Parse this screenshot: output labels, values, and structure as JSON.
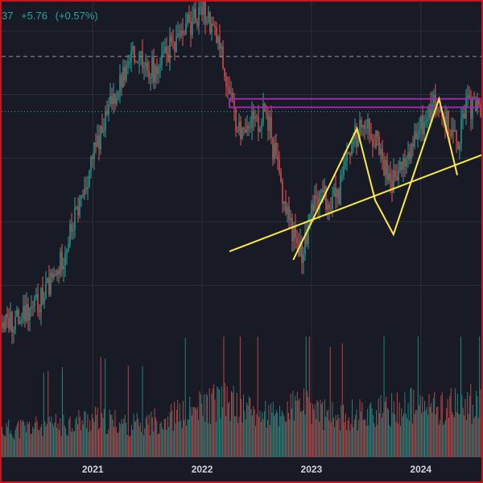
{
  "header": {
    "price_fragment": "37",
    "change": "+5.76",
    "change_pct": "(+0.57%)"
  },
  "colors": {
    "background": "#181b25",
    "up": "#26a69a",
    "down": "#ef5350",
    "trendline": "#ffeb3b",
    "resistance_zone": "#9c27b0",
    "grid": "#2a2e39",
    "border": "#c8141c"
  },
  "chart_data": {
    "type": "candlestick",
    "x_tick_labels": [
      "2021",
      "2022",
      "2023",
      "2024"
    ],
    "x_range": [
      "2020-03",
      "2024-08"
    ],
    "grid": true,
    "price_series": [
      [
        "2020-03",
        20
      ],
      [
        "2020-06",
        23
      ],
      [
        "2020-09",
        32
      ],
      [
        "2020-12",
        52
      ],
      [
        "2021-01",
        60
      ],
      [
        "2021-02",
        66
      ],
      [
        "2021-03",
        73
      ],
      [
        "2021-04",
        78
      ],
      [
        "2021-05",
        82
      ],
      [
        "2021-06",
        86
      ],
      [
        "2021-07",
        82
      ],
      [
        "2021-08",
        80
      ],
      [
        "2021-09",
        84
      ],
      [
        "2021-10",
        88
      ],
      [
        "2021-11",
        92
      ],
      [
        "2021-12",
        92
      ],
      [
        "2022-01",
        96
      ],
      [
        "2022-02",
        92
      ],
      [
        "2022-03",
        86
      ],
      [
        "2022-04",
        74
      ],
      [
        "2022-05",
        66
      ],
      [
        "2022-06",
        70
      ],
      [
        "2022-07",
        68
      ],
      [
        "2022-08",
        72
      ],
      [
        "2022-09",
        60
      ],
      [
        "2022-10",
        50
      ],
      [
        "2022-11",
        42
      ],
      [
        "2022-12",
        38
      ],
      [
        "2023-01",
        47
      ],
      [
        "2023-02",
        52
      ],
      [
        "2023-03",
        49
      ],
      [
        "2023-04",
        52
      ],
      [
        "2023-05",
        60
      ],
      [
        "2023-06",
        66
      ],
      [
        "2023-07",
        70
      ],
      [
        "2023-08",
        64
      ],
      [
        "2023-09",
        58
      ],
      [
        "2023-10",
        54
      ],
      [
        "2023-11",
        58
      ],
      [
        "2023-12",
        62
      ],
      [
        "2024-01",
        67
      ],
      [
        "2024-02",
        71
      ],
      [
        "2024-03",
        74
      ],
      [
        "2024-04",
        68
      ],
      [
        "2024-05",
        64
      ],
      [
        "2024-06",
        72
      ]
    ],
    "volume_series": [
      [
        "2020-03",
        20
      ],
      [
        "2020-09",
        24
      ],
      [
        "2021-01",
        28
      ],
      [
        "2021-06",
        24
      ],
      [
        "2021-12",
        34
      ],
      [
        "2022-03",
        42
      ],
      [
        "2022-06",
        36
      ],
      [
        "2022-09",
        30
      ],
      [
        "2022-12",
        40
      ],
      [
        "2023-03",
        30
      ],
      [
        "2023-06",
        32
      ],
      [
        "2023-09",
        34
      ],
      [
        "2023-12",
        38
      ],
      [
        "2024-03",
        36
      ],
      [
        "2024-06",
        40
      ]
    ],
    "annotations": {
      "resistance_zone": {
        "from": "2022-04",
        "to": "2024-08",
        "low": 72,
        "high": 74
      },
      "dashed_level": 84,
      "dotted_level": 71,
      "rising_trendline": {
        "from": [
          "2022-04",
          38
        ],
        "to": [
          "2024-08",
          61
        ]
      },
      "zigzag": [
        [
          "2022-11",
          36
        ],
        [
          "2023-06",
          67
        ],
        [
          "2023-08",
          50
        ],
        [
          "2023-10",
          42
        ],
        [
          "2024-03",
          74
        ],
        [
          "2024-05",
          56
        ]
      ]
    }
  }
}
